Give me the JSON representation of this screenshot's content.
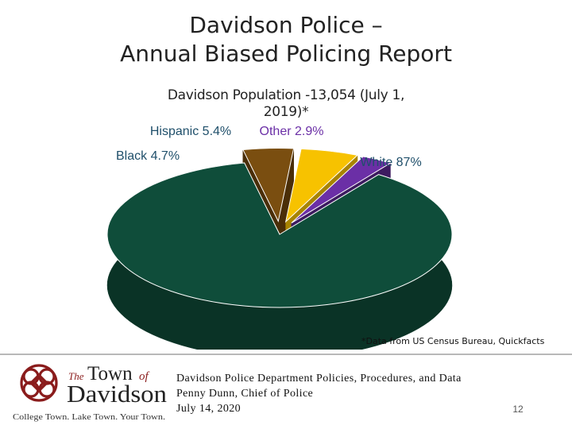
{
  "slide": {
    "title_line1": "Davidson Police –",
    "title_line2": "Annual Biased Policing Report",
    "source_note": "*Data from US Census Bureau, Quickfacts",
    "footer_line1": "Davidson Police Department Policies, Procedures, and Data",
    "footer_line2": "Penny Dunn, Chief of Police",
    "footer_line3": "July 14, 2020",
    "page_number": "12"
  },
  "logo": {
    "the": "The",
    "town": "Town",
    "of": "of",
    "name": "Davidson",
    "tagline": "College Town. Lake Town. Your Town."
  },
  "chart_data": {
    "type": "pie",
    "title": "Davidson Population -13,054 (July 1, 2019)*",
    "slices": [
      {
        "label": "White 87%",
        "value": 87,
        "color": "#0f4d3a",
        "side": "#0a3326"
      },
      {
        "label": "Black 4.7%",
        "value": 4.7,
        "color": "#7a4e10",
        "side": "#4a2e08"
      },
      {
        "label": "Hispanic 5.4%",
        "value": 5.4,
        "color": "#f7c200",
        "side": "#a88400"
      },
      {
        "label": "Other 2.9%",
        "value": 2.9,
        "color": "#6b2fa6",
        "side": "#3d1b60"
      }
    ]
  }
}
